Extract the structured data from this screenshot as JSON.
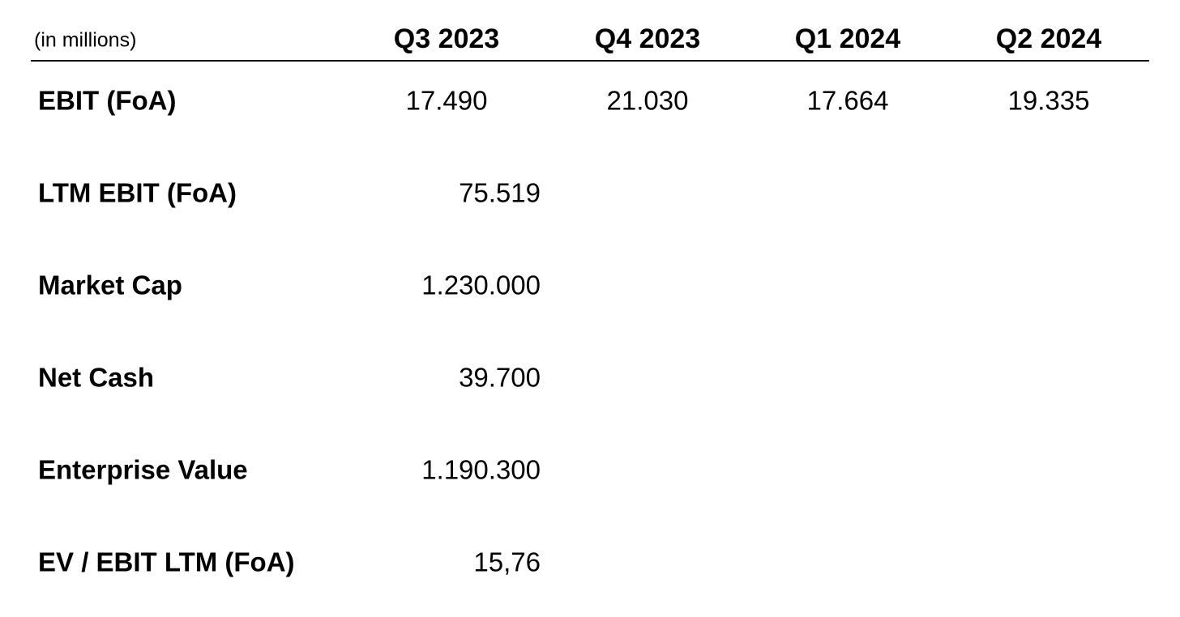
{
  "table": {
    "unit_note": "(in millions)",
    "columns": [
      "Q3 2023",
      "Q4 2023",
      "Q1 2024",
      "Q2 2024"
    ],
    "rows": [
      {
        "label": "EBIT (FoA)",
        "values": [
          "17.490",
          "21.030",
          "17.664",
          "19.335"
        ]
      },
      {
        "label": "LTM EBIT (FoA)",
        "values": [
          "75.519"
        ]
      },
      {
        "label": "Market Cap",
        "values": [
          "1.230.000"
        ]
      },
      {
        "label": "Net Cash",
        "values": [
          "39.700"
        ]
      },
      {
        "label": "Enterprise Value",
        "values": [
          "1.190.300"
        ]
      },
      {
        "label": "EV / EBIT LTM (FoA)",
        "values": [
          "15,76"
        ]
      }
    ]
  }
}
